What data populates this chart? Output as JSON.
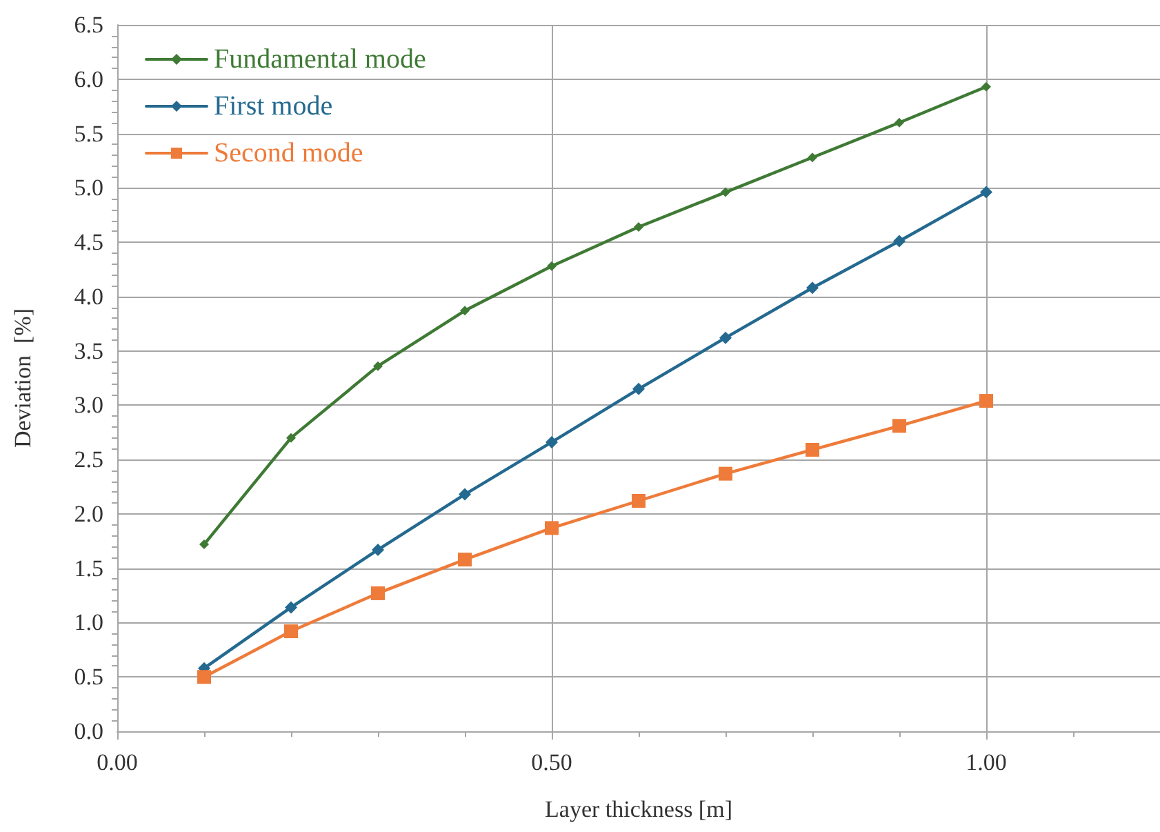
{
  "chart_data": {
    "type": "line",
    "xlabel": "Layer thickness [m]",
    "ylabel": "Deviation  [%]",
    "x": [
      0.1,
      0.2,
      0.3,
      0.4,
      0.5,
      0.6,
      0.7,
      0.8,
      0.9,
      1.0
    ],
    "series": [
      {
        "name": "Fundamental mode",
        "color": "#3f7a35",
        "marker": "diamond",
        "values": [
          1.72,
          2.7,
          3.36,
          3.87,
          4.28,
          4.64,
          4.96,
          5.28,
          5.6,
          5.93
        ]
      },
      {
        "name": "First mode",
        "color": "#24698f",
        "marker": "diamond",
        "values": [
          0.58,
          1.14,
          1.67,
          2.18,
          2.66,
          3.15,
          3.62,
          4.08,
          4.51,
          4.96
        ]
      },
      {
        "name": "Second mode",
        "color": "#ee7b3a",
        "marker": "square",
        "values": [
          0.5,
          0.92,
          1.27,
          1.58,
          1.87,
          2.12,
          2.37,
          2.59,
          2.81,
          3.04
        ]
      }
    ],
    "xlim": [
      0,
      1.2
    ],
    "xticks": [
      {
        "value": 0,
        "label": "0.00"
      },
      {
        "value": 0.5,
        "label": "0.50"
      },
      {
        "value": 1.0,
        "label": "1.00"
      }
    ],
    "ylim": [
      0,
      6.5
    ],
    "yticks": [
      {
        "value": 0,
        "label": "0.0"
      },
      {
        "value": 0.5,
        "label": "0.5"
      },
      {
        "value": 1,
        "label": "1.0"
      },
      {
        "value": 1.5,
        "label": "1.5"
      },
      {
        "value": 2,
        "label": "2.0"
      },
      {
        "value": 2.5,
        "label": "2.5"
      },
      {
        "value": 3,
        "label": "3.0"
      },
      {
        "value": 3.5,
        "label": "3.5"
      },
      {
        "value": 4,
        "label": "4.0"
      },
      {
        "value": 4.5,
        "label": "4.5"
      },
      {
        "value": 5,
        "label": "5.0"
      },
      {
        "value": 5.5,
        "label": "5.5"
      },
      {
        "value": 6,
        "label": "6.0"
      },
      {
        "value": 6.5,
        "label": "6.5"
      }
    ],
    "grid": true,
    "legend": "top left",
    "line_style": "solid"
  }
}
